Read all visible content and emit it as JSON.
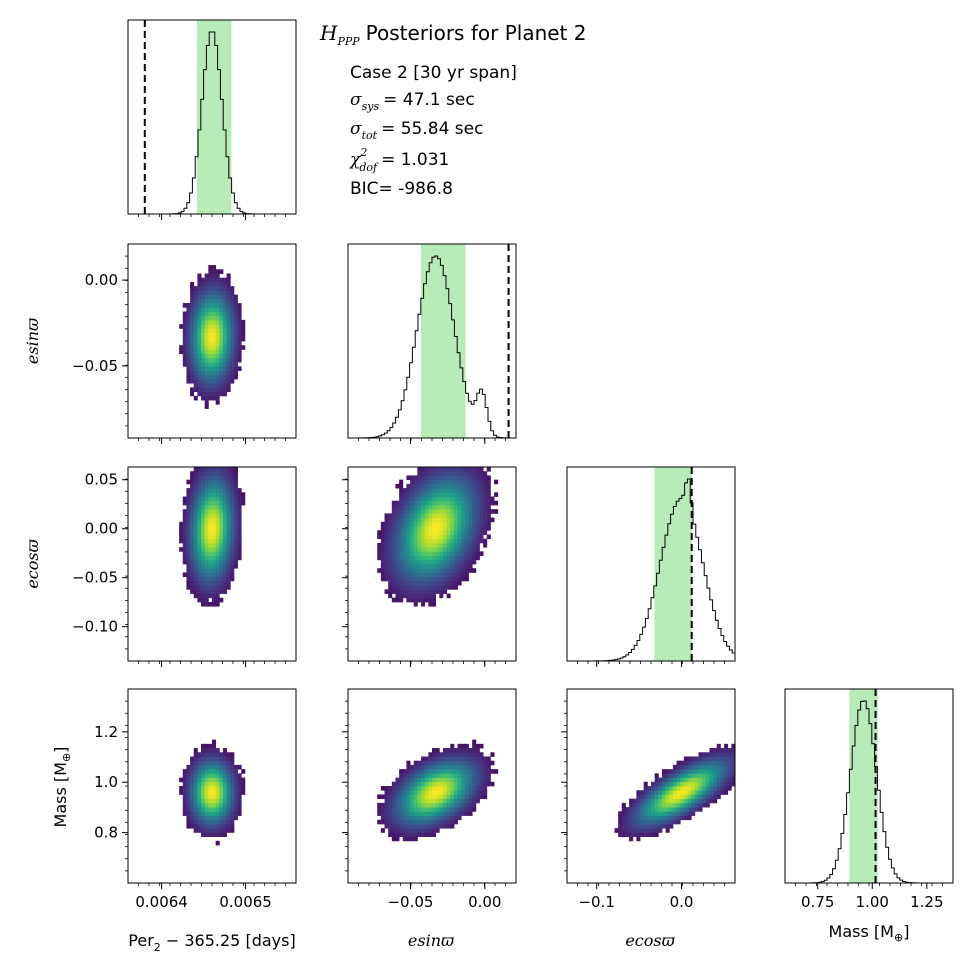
{
  "chart_data": {
    "type": "corner",
    "title": {
      "script": "H",
      "subscript": "PPP",
      "text": "Posteriors for Planet 2"
    },
    "info": {
      "case": "Case 2 [30 yr span]",
      "sigma_sys": {
        "symbol": "σ",
        "sub": "sys",
        "text": "= 47.1 sec"
      },
      "sigma_tot": {
        "symbol": "σ",
        "sub": "tot",
        "text": "= 55.84 sec"
      },
      "chi2_dof": {
        "symbol": "χ",
        "sup": "2",
        "sub": "dof",
        "text": "= 1.031"
      },
      "bic": "BIC= -986.8"
    },
    "parameters": [
      {
        "name": "period",
        "xlabel_main": "Per",
        "xlabel_sub": "2",
        "xlabel_rest": " − 365.25 [days]",
        "range": [
          0.00636,
          0.00656
        ],
        "ticks": [
          0.0064,
          0.0065
        ],
        "tick_labels": [
          "0.0064",
          "0.0065"
        ],
        "median": 0.00646,
        "std": 1.2e-05,
        "ci": [
          0.006442,
          0.006483
        ],
        "truth": 0.00638
      },
      {
        "name": "esinw",
        "label": "esinϖ",
        "ylabel": "esinϖ",
        "range": [
          -0.092,
          0.021
        ],
        "ticks": [
          0.0,
          -0.05
        ],
        "tick_labels": [
          "0.00",
          "−0.05"
        ],
        "xticks": [
          -0.05,
          0.0
        ],
        "xtick_labels": [
          "−0.05",
          "0.00"
        ],
        "median": -0.033,
        "std": 0.0125,
        "ci": [
          -0.043,
          -0.013
        ],
        "truth": 0.016
      },
      {
        "name": "ecosw",
        "label": "ecosϖ",
        "ylabel": "ecosϖ",
        "range": [
          -0.135,
          0.063
        ],
        "ticks": [
          0.05,
          0.0,
          -0.05,
          -0.1
        ],
        "tick_labels": [
          "0.05",
          "0.00",
          "−0.05",
          "−0.10"
        ],
        "xticks": [
          -0.1,
          0.0
        ],
        "xtick_labels": [
          "−0.1",
          "0.0"
        ],
        "median": 0.0,
        "std": 0.025,
        "ci": [
          -0.032,
          0.012
        ],
        "truth": 0.012
      },
      {
        "name": "mass",
        "label_main": "Mass [M",
        "label_sub": "⊕",
        "label_end": "]",
        "range": [
          0.6,
          1.37
        ],
        "ticks": [
          0.8,
          1.0,
          1.2
        ],
        "tick_labels": [
          "0.8",
          "1.0",
          "1.2"
        ],
        "xticks": [
          0.75,
          1.0,
          1.25
        ],
        "xtick_labels": [
          "0.75",
          "1.00",
          "1.25"
        ],
        "median": 0.96,
        "std": 0.06,
        "ci": [
          0.895,
          1.025
        ],
        "truth": 1.015
      }
    ],
    "colors": {
      "ci_fill": "#90e090",
      "hist_line": "#000000",
      "truth_line": "#000000",
      "colormap": "viridis"
    }
  }
}
